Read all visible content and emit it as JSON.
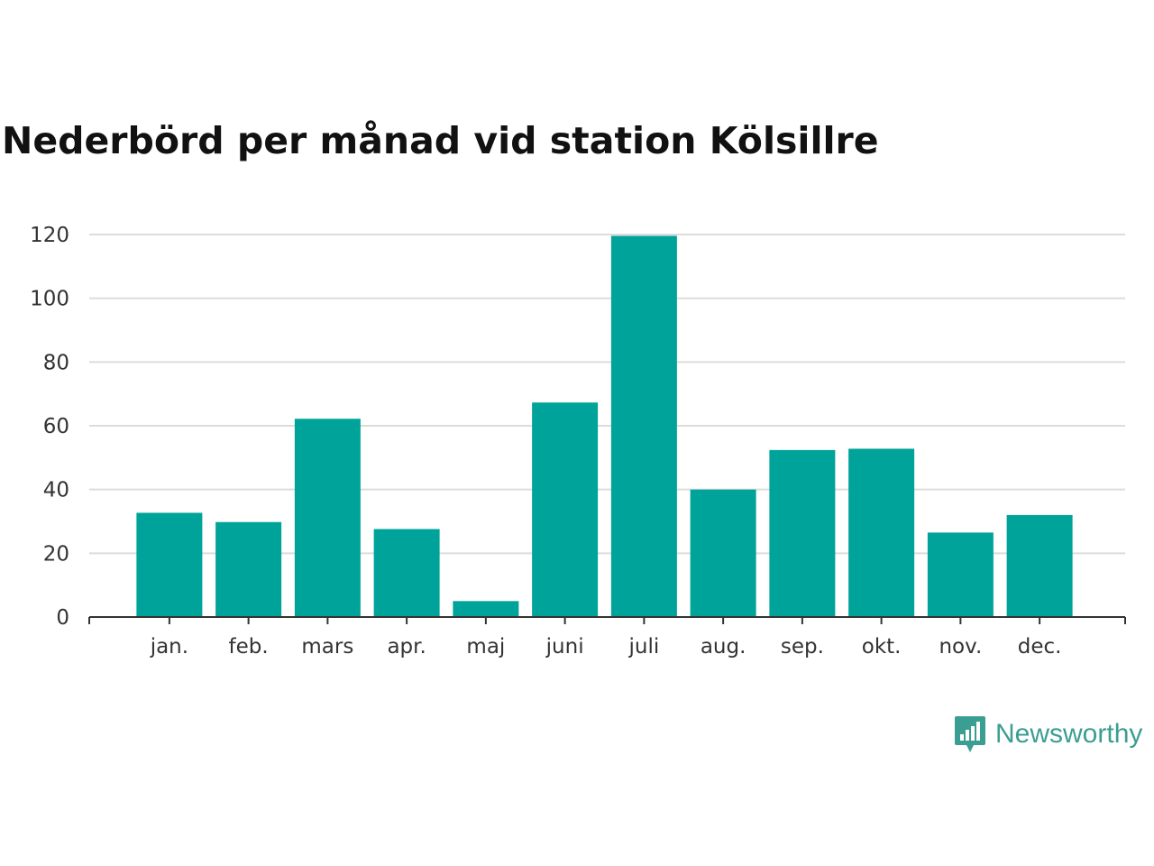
{
  "title": "Nederbörd per månad vid station Kölsillre",
  "brand": {
    "name": "Newsworthy",
    "color": "#3a9e92",
    "icon": "newsworthy-logo-icon"
  },
  "chart_data": {
    "type": "bar",
    "title": "Nederbörd per månad vid station Kölsillre",
    "xlabel": "",
    "ylabel": "",
    "categories": [
      "jan.",
      "feb.",
      "mars",
      "apr.",
      "maj",
      "juni",
      "juli",
      "aug.",
      "sep.",
      "okt.",
      "nov.",
      "dec."
    ],
    "values": [
      32.7,
      29.8,
      62.2,
      27.6,
      5.0,
      67.3,
      119.6,
      40.0,
      52.4,
      52.8,
      26.5,
      32.0
    ],
    "yticks": [
      0,
      20,
      40,
      60,
      80,
      100,
      120
    ],
    "ylim": [
      0,
      120
    ],
    "grid": true,
    "legend": "none",
    "bar_color": "#00a39a"
  }
}
